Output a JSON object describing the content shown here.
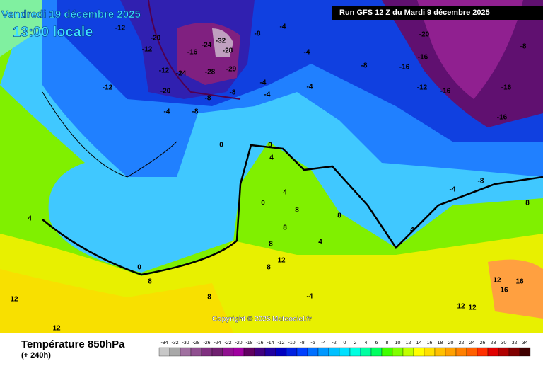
{
  "header": {
    "date": "Vendredi 19 décembre 2025",
    "time": "13:00 locale",
    "run": "Run GFS 12 Z du Mardi 9 décembre 2025"
  },
  "copyright": "Copyright © 2025 Meteociel.fr",
  "footer": {
    "title": "Température 850hPa",
    "lead": "(+ 240h)"
  },
  "scale": {
    "values": [
      -34,
      -32,
      -30,
      -28,
      -26,
      -24,
      -22,
      -20,
      -18,
      -16,
      -14,
      -12,
      -10,
      -8,
      -6,
      -4,
      -2,
      0,
      2,
      4,
      6,
      8,
      10,
      12,
      14,
      16,
      18,
      20,
      22,
      24,
      26,
      28,
      30,
      32,
      34
    ],
    "colors": [
      "#c8c8c8",
      "#a8a8a8",
      "#a070a0",
      "#905090",
      "#803080",
      "#702070",
      "#901090",
      "#a000a0",
      "#600060",
      "#400080",
      "#2000a0",
      "#0000c0",
      "#0020e0",
      "#0040ff",
      "#0070ff",
      "#0098ff",
      "#00c0ff",
      "#00e0ff",
      "#00ffe0",
      "#00ffa0",
      "#00ff60",
      "#40ff00",
      "#80ff00",
      "#c0ff00",
      "#ffff00",
      "#ffe000",
      "#ffc000",
      "#ffa000",
      "#ff8000",
      "#ff6000",
      "#ff3000",
      "#e00000",
      "#b00000",
      "#800000",
      "#400000"
    ]
  },
  "contour_labels": [
    -12,
    -20,
    -12,
    -16,
    -24,
    -32,
    -28,
    -24,
    -28,
    -29,
    -12,
    -20,
    -12,
    -8,
    -8,
    -4,
    -8,
    -8,
    -4,
    -4,
    -8,
    -20,
    -16,
    -16,
    -12,
    -16,
    -16,
    -16,
    -8,
    -4,
    -4,
    -4,
    0,
    0,
    4,
    4,
    8,
    8,
    4,
    8,
    8,
    0,
    4,
    0,
    8,
    12,
    8,
    12,
    12,
    12,
    12,
    16,
    16,
    12,
    8,
    -4,
    -8,
    4,
    -4,
    8
  ]
}
